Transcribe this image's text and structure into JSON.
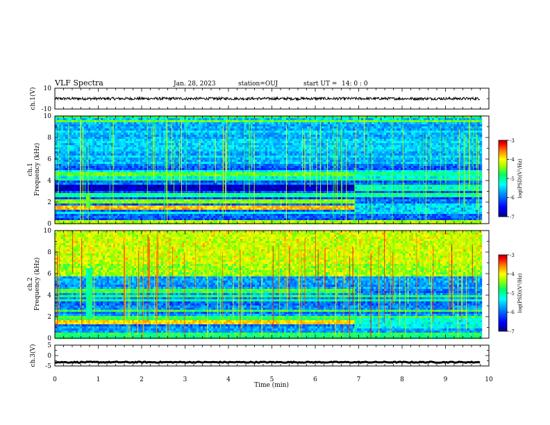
{
  "header": {
    "title": "VLF Spectra",
    "date": "Jan. 28, 2023",
    "station": "station=OUJ",
    "start_label": "start UT =",
    "start_time": "14: 0 : 0"
  },
  "chart_data": [
    {
      "type": "line",
      "name": "ch1-waveform",
      "ylabel": "ch.1(V)",
      "ylim": [
        -10,
        10
      ],
      "y_ticks": [
        "10",
        "-10"
      ],
      "xlim": [
        0,
        10
      ],
      "x": [
        0,
        9.8
      ],
      "y": [
        0,
        0
      ],
      "amplitude": 1.3
    },
    {
      "type": "heatmap",
      "name": "ch1-spectrogram",
      "ylabel_line1": "ch.1",
      "ylabel_line2": "Frequency (kHz)",
      "xlim": [
        0,
        10
      ],
      "ylim": [
        0,
        10
      ],
      "y_ticks": [
        "0",
        "2",
        "4",
        "6",
        "8",
        "10"
      ],
      "data_end_min": 9.8,
      "colorbar": {
        "label": "log(PSD)(V²/Hz)",
        "ticks": [
          "-3",
          "-4",
          "-5",
          "-6",
          "-7"
        ],
        "range": [
          -7,
          -3
        ]
      },
      "features": {
        "band_before_kHz": 4.6,
        "band_after_kHz": 3.2,
        "bright_band_kHz": 1.6,
        "secondary_band_kHz": 2.1,
        "transition_min": 6.9,
        "tone_min": 0.75
      }
    },
    {
      "type": "heatmap",
      "name": "ch2-spectrogram",
      "ylabel_line1": "ch.2",
      "ylabel_line2": "Frequency (kHz)",
      "xlim": [
        0,
        10
      ],
      "ylim": [
        0,
        10
      ],
      "y_ticks": [
        "0",
        "2",
        "4",
        "6",
        "8",
        "10"
      ],
      "data_end_min": 9.8,
      "colorbar": {
        "label": "log(PSD)(V²/Hz)",
        "ticks": [
          "-3",
          "-4",
          "-5",
          "-6",
          "-7"
        ],
        "range": [
          -7,
          -3
        ]
      },
      "features": {
        "band_before_kHz": 4.4,
        "bright_band_kHz": 1.6,
        "upper_noise_from_kHz": 5.8,
        "transition_min": 6.9,
        "tone_min": 0.75
      }
    },
    {
      "type": "line",
      "name": "ch3-waveform",
      "ylabel": "ch.3(V)",
      "ylim": [
        -5,
        5
      ],
      "y_ticks": [
        "5",
        "0",
        "-5"
      ],
      "xlim": [
        0,
        10
      ],
      "x": [
        0,
        9.8
      ],
      "y": [
        -3.2,
        -3.2
      ],
      "amplitude": 0.25
    }
  ],
  "x_axis": {
    "label": "Time (min)",
    "ticks": [
      "0",
      "1",
      "2",
      "3",
      "4",
      "5",
      "6",
      "7",
      "8",
      "9",
      "10"
    ]
  },
  "colors": {
    "colormap": [
      "#00008a",
      "#0000ff",
      "#0080ff",
      "#00ffff",
      "#00ff80",
      "#80ff00",
      "#ffff00",
      "#ff8000",
      "#ff0000",
      "#800000"
    ]
  }
}
